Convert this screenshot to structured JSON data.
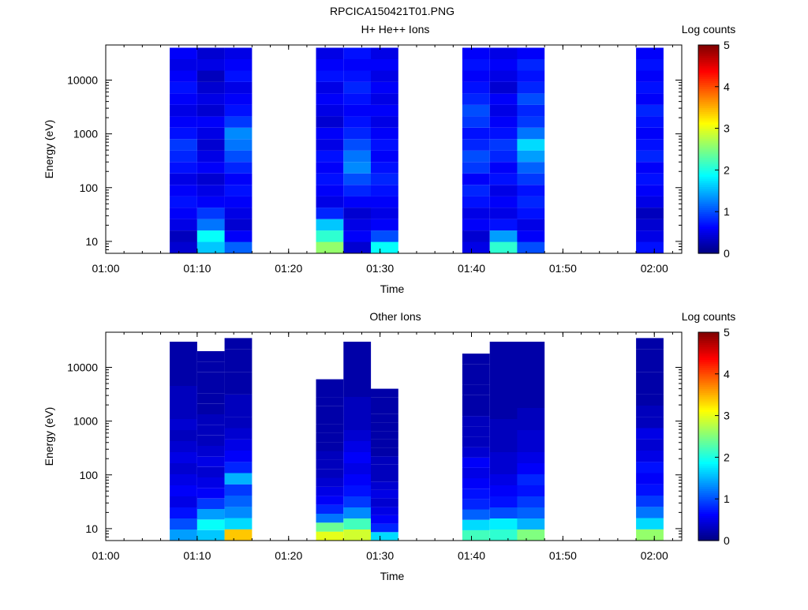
{
  "figure": {
    "title": "RPCICA150421T01.PNG"
  },
  "chart_data": [
    {
      "type": "heatmap",
      "title": "H+ He++ Ions",
      "xlabel": "Time",
      "ylabel": "Energy (eV)",
      "colorbar_label": "Log counts",
      "xlim": [
        "01:00",
        "02:03"
      ],
      "x_ticks": [
        "01:00",
        "01:10",
        "01:20",
        "01:30",
        "01:40",
        "01:50",
        "02:00"
      ],
      "ylim": [
        6,
        45000
      ],
      "yscale": "log",
      "y_ticks": [
        "10",
        "100",
        "1000",
        "10000"
      ],
      "clim": [
        0,
        5
      ],
      "c_ticks": [
        "0",
        "1",
        "2",
        "3",
        "4",
        "5"
      ],
      "time_bins": [
        {
          "start": "01:07",
          "end": "01:10",
          "min_energy": 6,
          "max_energy": 40000,
          "levels": [
            0.4,
            0.3,
            0.5,
            0.6,
            0.7,
            0.6,
            0.5,
            0.7,
            0.8,
            0.9,
            0.7,
            0.6,
            0.5,
            0.6,
            0.7,
            0.6,
            0.5,
            0.6
          ]
        },
        {
          "start": "01:10",
          "end": "01:13",
          "min_energy": 6,
          "max_energy": 40000,
          "levels": [
            1.6,
            1.9,
            1.2,
            0.9,
            0.6,
            0.5,
            0.4,
            0.6,
            0.5,
            0.4,
            0.5,
            0.6,
            0.4,
            0.5,
            0.4,
            0.3,
            0.5,
            0.4
          ]
        },
        {
          "start": "01:13",
          "end": "01:16",
          "min_energy": 6,
          "max_energy": 40000,
          "levels": [
            1.1,
            0.6,
            0.4,
            0.5,
            0.6,
            0.7,
            0.6,
            0.8,
            1.0,
            1.2,
            1.3,
            0.9,
            0.7,
            0.6,
            0.5,
            0.7,
            0.6,
            0.5
          ]
        },
        {
          "start": "01:23",
          "end": "01:26",
          "min_energy": 6,
          "max_energy": 40000,
          "levels": [
            2.6,
            2.1,
            1.6,
            0.8,
            0.5,
            0.6,
            0.7,
            0.6,
            0.7,
            0.5,
            0.6,
            0.4,
            0.5,
            0.6,
            0.5,
            0.7,
            0.6,
            0.5
          ]
        },
        {
          "start": "01:26",
          "end": "01:29",
          "min_energy": 6,
          "max_energy": 40000,
          "levels": [
            0.4,
            0.6,
            0.5,
            0.4,
            0.6,
            0.8,
            1.0,
            1.3,
            1.2,
            1.0,
            0.8,
            0.7,
            0.6,
            0.7,
            0.8,
            0.7,
            0.6,
            0.7
          ]
        },
        {
          "start": "01:29",
          "end": "01:32",
          "min_energy": 6,
          "max_energy": 40000,
          "levels": [
            1.9,
            1.0,
            0.6,
            0.5,
            0.6,
            0.7,
            0.8,
            0.7,
            0.6,
            0.7,
            0.6,
            0.5,
            0.6,
            0.5,
            0.6,
            0.5,
            0.6,
            0.5
          ]
        },
        {
          "start": "01:39",
          "end": "01:42",
          "min_energy": 6,
          "max_energy": 40000,
          "levels": [
            0.5,
            0.4,
            0.6,
            0.5,
            0.7,
            0.8,
            0.6,
            0.9,
            1.0,
            0.8,
            0.7,
            0.9,
            1.0,
            0.8,
            0.7,
            0.6,
            0.7,
            0.6
          ]
        },
        {
          "start": "01:42",
          "end": "01:45",
          "min_energy": 6,
          "max_energy": 40000,
          "levels": [
            2.1,
            1.4,
            0.7,
            0.5,
            0.6,
            0.5,
            0.7,
            0.6,
            0.8,
            0.9,
            0.7,
            0.6,
            0.5,
            0.6,
            0.4,
            0.5,
            0.6,
            0.5
          ]
        },
        {
          "start": "01:45",
          "end": "01:48",
          "min_energy": 6,
          "max_energy": 40000,
          "levels": [
            1.0,
            0.6,
            0.5,
            0.7,
            0.8,
            0.7,
            0.9,
            1.1,
            1.4,
            1.7,
            1.2,
            0.9,
            0.8,
            1.0,
            0.8,
            0.7,
            0.8,
            0.6
          ]
        },
        {
          "start": "01:58",
          "end": "02:01",
          "min_energy": 6,
          "max_energy": 40000,
          "levels": [
            0.7,
            0.5,
            0.4,
            0.3,
            0.5,
            0.6,
            0.7,
            0.6,
            0.8,
            0.7,
            0.6,
            0.7,
            0.8,
            0.6,
            0.7,
            0.6,
            0.7,
            0.6
          ]
        }
      ]
    },
    {
      "type": "heatmap",
      "title": "Other Ions",
      "xlabel": "Time",
      "ylabel": "Energy (eV)",
      "colorbar_label": "Log counts",
      "xlim": [
        "01:00",
        "02:03"
      ],
      "x_ticks": [
        "01:00",
        "01:10",
        "01:20",
        "01:30",
        "01:40",
        "01:50",
        "02:00"
      ],
      "ylim": [
        6,
        45000
      ],
      "yscale": "log",
      "y_ticks": [
        "10",
        "100",
        "1000",
        "10000"
      ],
      "clim": [
        0,
        5
      ],
      "c_ticks": [
        "0",
        "1",
        "2",
        "3",
        "4",
        "5"
      ],
      "time_bins": [
        {
          "start": "01:07",
          "end": "01:10",
          "min_energy": 6,
          "max_energy": 30000,
          "levels": [
            1.4,
            1.0,
            0.7,
            0.5,
            0.6,
            0.5,
            0.4,
            0.5,
            0.4,
            0.3,
            0.4,
            0.3,
            0.3,
            0.3,
            0.2,
            0.2,
            0.2,
            0.2
          ]
        },
        {
          "start": "01:10",
          "end": "01:13",
          "min_energy": 6,
          "max_energy": 20000,
          "levels": [
            1.6,
            1.9,
            1.4,
            0.9,
            0.6,
            0.5,
            0.4,
            0.5,
            0.4,
            0.3,
            0.3,
            0.3,
            0.2,
            0.2,
            0.2,
            0.2,
            0.2,
            0.2
          ]
        },
        {
          "start": "01:13",
          "end": "01:16",
          "min_energy": 6,
          "max_energy": 35000,
          "levels": [
            3.4,
            1.7,
            1.3,
            1.1,
            0.9,
            1.5,
            0.8,
            0.6,
            0.5,
            0.4,
            0.3,
            0.3,
            0.3,
            0.2,
            0.2,
            0.2,
            0.2,
            0.2
          ]
        },
        {
          "start": "01:23",
          "end": "01:26",
          "min_energy": 6,
          "max_energy": 6000,
          "levels": [
            3.0,
            2.4,
            1.2,
            0.8,
            0.6,
            0.5,
            0.4,
            0.3,
            0.3,
            0.3,
            0.2,
            0.2,
            0.2,
            0.2,
            0.2,
            0.2,
            0.2,
            0.2
          ]
        },
        {
          "start": "01:26",
          "end": "01:29",
          "min_energy": 6,
          "max_energy": 30000,
          "levels": [
            2.9,
            2.2,
            1.3,
            0.9,
            0.7,
            0.6,
            0.5,
            0.6,
            0.5,
            0.4,
            0.3,
            0.3,
            0.3,
            0.2,
            0.2,
            0.2,
            0.2,
            0.2
          ]
        },
        {
          "start": "01:29",
          "end": "01:32",
          "min_energy": 6,
          "max_energy": 4000,
          "levels": [
            1.7,
            0.8,
            0.6,
            0.5,
            0.4,
            0.5,
            0.4,
            0.3,
            0.3,
            0.3,
            0.2,
            0.2,
            0.2,
            0.2,
            0.2,
            0.2,
            0.2,
            0.2
          ]
        },
        {
          "start": "01:39",
          "end": "01:42",
          "min_energy": 6,
          "max_energy": 18000,
          "levels": [
            2.2,
            1.7,
            1.1,
            0.8,
            0.7,
            0.6,
            0.5,
            0.6,
            0.4,
            0.3,
            0.3,
            0.3,
            0.2,
            0.2,
            0.2,
            0.2,
            0.2,
            0.2
          ]
        },
        {
          "start": "01:42",
          "end": "01:45",
          "min_energy": 6,
          "max_energy": 30000,
          "levels": [
            2.1,
            1.8,
            1.0,
            0.7,
            0.6,
            0.5,
            0.4,
            0.4,
            0.3,
            0.3,
            0.3,
            0.2,
            0.2,
            0.2,
            0.2,
            0.2,
            0.2,
            0.2
          ]
        },
        {
          "start": "01:45",
          "end": "01:48",
          "min_energy": 6,
          "max_energy": 30000,
          "levels": [
            2.5,
            1.5,
            1.1,
            0.9,
            0.7,
            0.8,
            0.6,
            0.5,
            0.4,
            0.4,
            0.3,
            0.3,
            0.2,
            0.2,
            0.2,
            0.2,
            0.2,
            0.2
          ]
        },
        {
          "start": "01:58",
          "end": "02:01",
          "min_energy": 6,
          "max_energy": 35000,
          "levels": [
            2.6,
            1.7,
            1.2,
            0.9,
            0.7,
            0.6,
            0.7,
            0.5,
            0.4,
            0.5,
            0.3,
            0.3,
            0.2,
            0.2,
            0.2,
            0.2,
            0.2,
            0.2
          ]
        }
      ]
    }
  ]
}
